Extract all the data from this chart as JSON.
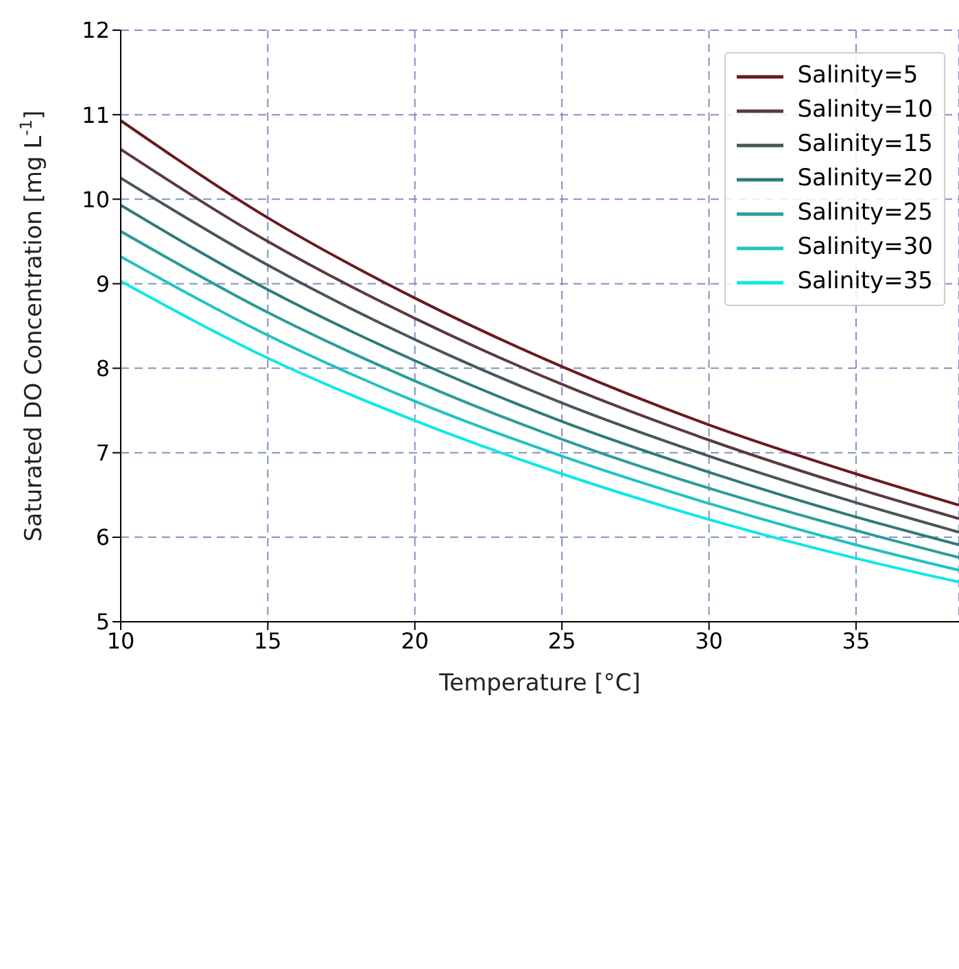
{
  "chart_data": {
    "type": "line",
    "xlabel": "Temperature [°C]",
    "ylabel": "Saturated DO Concentration [mg L$^{-1}$]",
    "x": [
      10,
      15,
      20,
      25,
      30,
      35,
      38.5
    ],
    "series": [
      {
        "name": "Salinity=5",
        "color": "#6b1a1f",
        "values": [
          10.93,
          9.78,
          8.83,
          8.02,
          7.33,
          6.75,
          6.38
        ]
      },
      {
        "name": "Salinity=10",
        "color": "#5b3a40",
        "values": [
          10.59,
          9.5,
          8.59,
          7.81,
          7.15,
          6.58,
          6.22
        ]
      },
      {
        "name": "Salinity=15",
        "color": "#485659",
        "values": [
          10.25,
          9.22,
          8.34,
          7.59,
          6.96,
          6.41,
          6.06
        ]
      },
      {
        "name": "Salinity=20",
        "color": "#2f7a78",
        "values": [
          9.93,
          8.93,
          8.09,
          7.37,
          6.77,
          6.24,
          5.91
        ]
      },
      {
        "name": "Salinity=25",
        "color": "#2a9d99",
        "values": [
          9.62,
          8.66,
          7.85,
          7.16,
          6.58,
          6.08,
          5.76
        ]
      },
      {
        "name": "Salinity=30",
        "color": "#22c2c2",
        "values": [
          9.32,
          8.39,
          7.61,
          6.96,
          6.4,
          5.91,
          5.61
        ]
      },
      {
        "name": "Salinity=35",
        "color": "#0de8e8",
        "values": [
          9.03,
          8.12,
          7.38,
          6.75,
          6.21,
          5.75,
          5.47
        ]
      }
    ],
    "xlim": [
      10,
      38.5
    ],
    "xticks": [
      10,
      15,
      20,
      25,
      30,
      35
    ],
    "ylim": [
      5,
      12
    ],
    "yticks": [
      5,
      6,
      7,
      8,
      9,
      10,
      11,
      12
    ],
    "grid": true,
    "legend": "top right",
    "marker": "none",
    "line_style": "solid"
  }
}
